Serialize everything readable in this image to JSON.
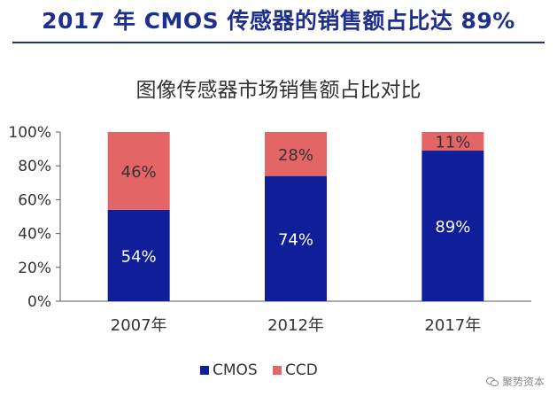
{
  "header": {
    "title": "2017 年 CMOS 传感器的销售额占比达 89%"
  },
  "watermark": {
    "text": "聚势资本",
    "icon": "wechat-icon"
  },
  "chart_data": {
    "type": "bar",
    "stacked": true,
    "title": "图像传感器市场销售额占比对比",
    "categories": [
      "2007年",
      "2012年",
      "2017年"
    ],
    "series": [
      {
        "name": "CMOS",
        "values": [
          54,
          74,
          89
        ],
        "color": "#0f1f99",
        "labels": [
          "54%",
          "74%",
          "89%"
        ]
      },
      {
        "name": "CCD",
        "values": [
          46,
          28,
          11
        ],
        "color": "#e46565",
        "labels": [
          "46%",
          "28%",
          "11%"
        ]
      }
    ],
    "ylim": [
      0,
      100
    ],
    "yticks": [
      "0%",
      "20%",
      "40%",
      "60%",
      "80%",
      "100%"
    ],
    "ytick_values": [
      0,
      20,
      40,
      60,
      80,
      100
    ],
    "xlabel": "",
    "ylabel": "",
    "grid": false,
    "legend_position": "bottom"
  }
}
